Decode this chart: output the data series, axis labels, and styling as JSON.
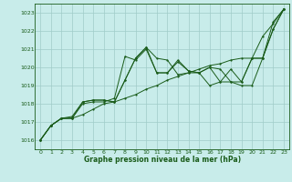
{
  "title": "Graphe pression niveau de la mer (hPa)",
  "bg_color": "#c8ecea",
  "line_color": "#1a5c1a",
  "grid_color": "#a0ccc8",
  "xlim": [
    -0.5,
    23.5
  ],
  "ylim": [
    1015.5,
    1023.5
  ],
  "yticks": [
    1016,
    1017,
    1018,
    1019,
    1020,
    1021,
    1022,
    1023
  ],
  "xticks": [
    0,
    1,
    2,
    3,
    4,
    5,
    6,
    7,
    8,
    9,
    10,
    11,
    12,
    13,
    14,
    15,
    16,
    17,
    18,
    19,
    20,
    21,
    22,
    23
  ],
  "series": [
    [
      1016.0,
      1016.8,
      1017.2,
      1017.2,
      1017.4,
      1017.7,
      1018.0,
      1018.1,
      1018.3,
      1018.5,
      1018.8,
      1019.0,
      1019.3,
      1019.5,
      1019.7,
      1019.9,
      1020.1,
      1020.2,
      1020.4,
      1020.5,
      1020.5,
      1021.7,
      1022.4,
      1023.2
    ],
    [
      1016.0,
      1016.8,
      1017.2,
      1017.2,
      1018.0,
      1018.1,
      1018.1,
      1018.3,
      1020.6,
      1020.4,
      1021.0,
      1019.7,
      1019.7,
      1020.4,
      1019.8,
      1019.7,
      1020.0,
      1019.9,
      1019.2,
      1019.2,
      1020.5,
      1020.5,
      1022.1,
      1023.2
    ],
    [
      1016.0,
      1016.8,
      1017.2,
      1017.2,
      1018.1,
      1018.2,
      1018.2,
      1018.1,
      1019.3,
      1020.5,
      1021.1,
      1019.7,
      1019.7,
      1020.3,
      1019.8,
      1019.7,
      1019.0,
      1019.2,
      1019.9,
      1019.2,
      1020.5,
      1020.5,
      1022.1,
      1023.2
    ],
    [
      1016.0,
      1016.8,
      1017.2,
      1017.3,
      1018.1,
      1018.2,
      1018.2,
      1018.1,
      1019.3,
      1020.5,
      1021.1,
      1020.5,
      1020.4,
      1019.6,
      1019.7,
      1019.7,
      1020.0,
      1019.2,
      1019.2,
      1019.0,
      1019.0,
      1020.5,
      1022.5,
      1023.2
    ]
  ]
}
